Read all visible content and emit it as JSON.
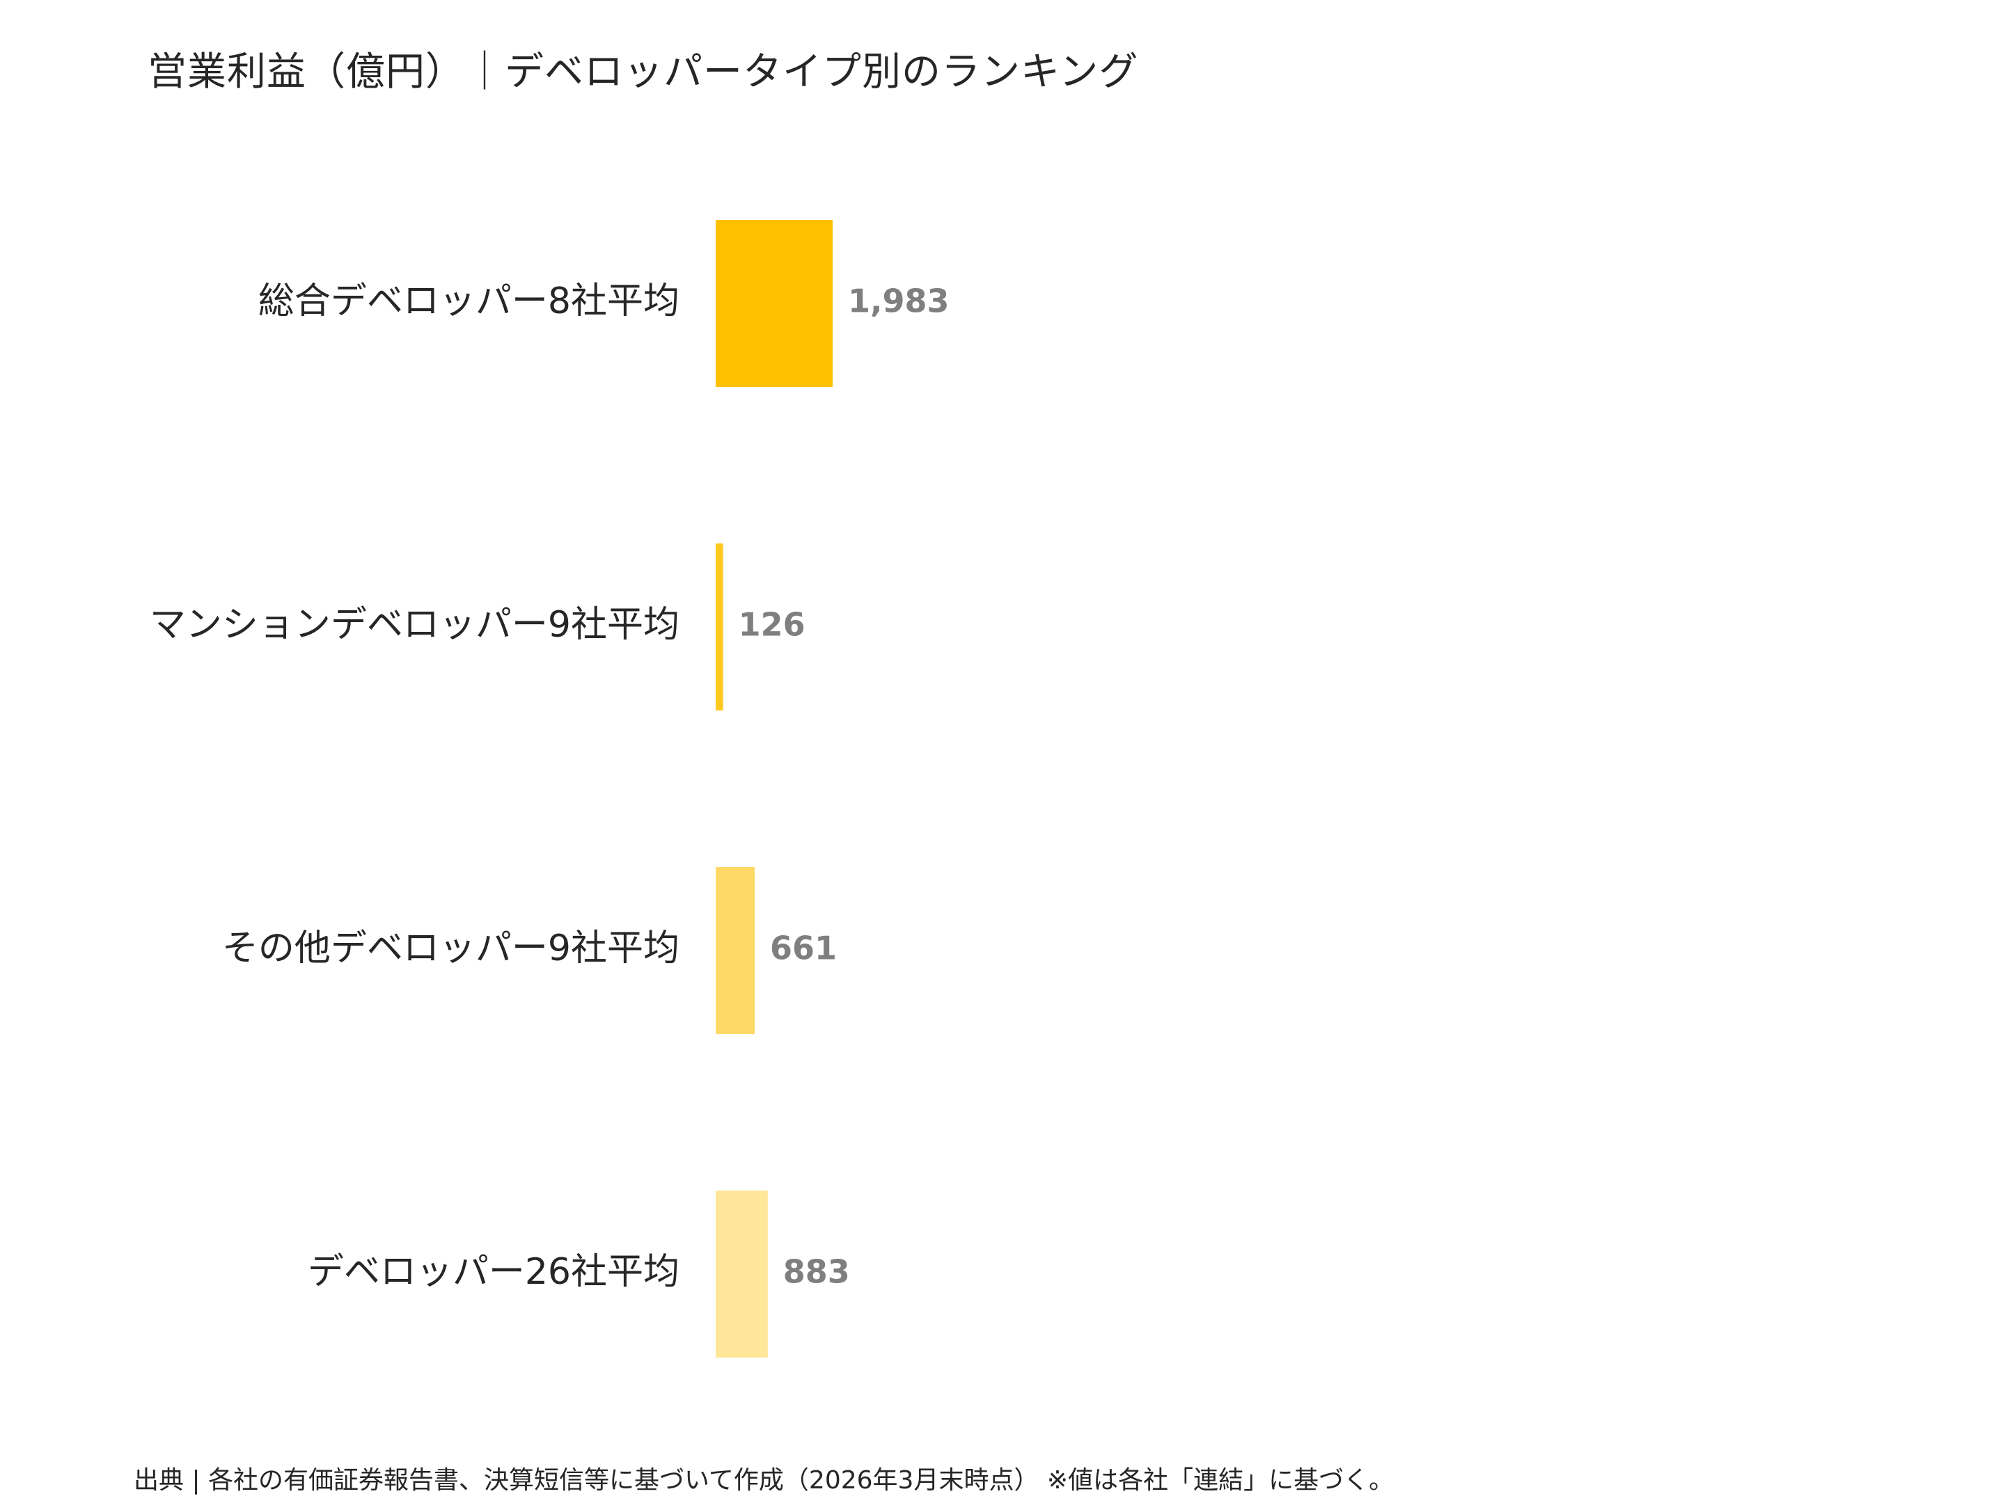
{
  "chart_data": {
    "type": "bar",
    "orientation": "horizontal",
    "title": "営業利益（億円）｜デベロッパータイプ別のランキング",
    "categories": [
      "総合デベロッパー8社平均",
      "マンションデベロッパー9社平均",
      "その他デベロッパー9社平均",
      "デベロッパー26社平均"
    ],
    "values": [
      1983,
      126,
      661,
      883
    ],
    "value_labels": [
      "1,983",
      "126",
      "661",
      "883"
    ],
    "bar_colors": [
      "#FFC000",
      "#FFC91F",
      "#FFD966",
      "#FFE699"
    ],
    "value_label_color": "#7F7F7F",
    "xlabel": "",
    "ylabel": "",
    "grid": false,
    "legend": "none"
  },
  "footnote": "出典 | 各社の有価証券報告書、決算短信等に基づいて作成（2026年3月末時点） ※値は各社「連結」に基づく。"
}
